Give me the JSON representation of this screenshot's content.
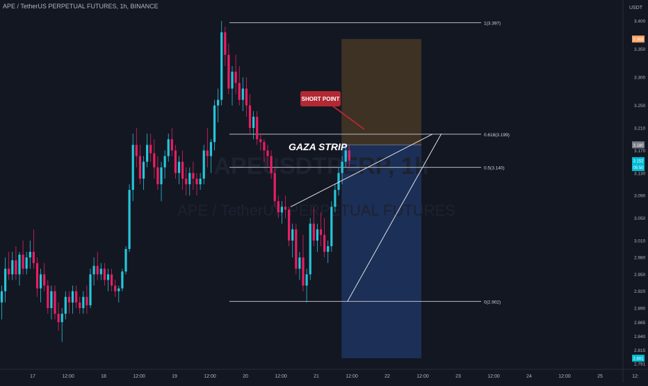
{
  "header": {
    "symbol_line": "APE / TetherUS PERPETUAL FUTURES, 1h, BINANCE",
    "currency": "USDT"
  },
  "watermark": {
    "ticker": "APEUSDTPERP, 1h",
    "name": "APE / TetherUS PERPETUAL FUTURES"
  },
  "annotations": {
    "gaza_strip": "GAZA STRIP",
    "short_point": "SHORT POINT"
  },
  "colors": {
    "background": "#131722",
    "up_candle": "#26c6da",
    "down_candle": "#e91e63",
    "target_zone": "#1c2f56",
    "stop_zone": "#3d3224",
    "short_point_bubble": "#b22833",
    "current_price_tag": "#00bcd4",
    "stop_price_tag": "#f7a363",
    "entry_price_tag": "#787b86"
  },
  "chart_data": {
    "type": "candlestick",
    "timeframe": "1h",
    "y_axis": {
      "ylim": [
        2.785,
        3.425
      ],
      "tick_labels": [
        "3.400",
        "3.350",
        "3.300",
        "3.250",
        "3.210",
        "3.170",
        "3.130",
        "3.090",
        "3.050",
        "3.010",
        "2.980",
        "2.950",
        "2.920",
        "2.890",
        "2.865",
        "2.840",
        "2.815",
        "2.791"
      ],
      "tick_values": [
        3.4,
        3.35,
        3.3,
        3.25,
        3.21,
        3.17,
        3.13,
        3.09,
        3.05,
        3.01,
        2.98,
        2.95,
        2.92,
        2.89,
        2.865,
        2.84,
        2.815,
        2.791
      ]
    },
    "x_axis": {
      "tick_labels": [
        "17",
        "12:00",
        "18",
        "12:00",
        "19",
        "12:00",
        "20",
        "12:00",
        "21",
        "12:00",
        "22",
        "12:00",
        "23",
        "12:00",
        "24",
        "12:00",
        "25",
        "12:"
      ],
      "tick_index": [
        0,
        12,
        24,
        36,
        48,
        60,
        72,
        84,
        96,
        108,
        120,
        132,
        144,
        156,
        168,
        180,
        192,
        204
      ]
    },
    "price_tags": [
      {
        "label": "3.368",
        "value": 3.368,
        "kind": "stop"
      },
      {
        "label": "3.180",
        "value": 3.18,
        "kind": "entry"
      },
      {
        "label": "3.152",
        "value": 3.152,
        "kind": "current",
        "sub": "05:50"
      },
      {
        "label": "2.801",
        "value": 2.801,
        "kind": "target"
      }
    ],
    "fib_levels": [
      {
        "label": "1(3.397)",
        "value": 3.397
      },
      {
        "label": "0.618(3.199)",
        "value": 3.199
      },
      {
        "label": "0.5(3.140)",
        "value": 3.14
      },
      {
        "label": "0(2.902)",
        "value": 2.902
      }
    ],
    "position": {
      "side": "short",
      "entry": 3.18,
      "stop": 3.368,
      "target": 2.801,
      "start_index": 115,
      "end_index": 142
    },
    "wedge": {
      "upper": [
        [
          82,
          3.07
        ],
        [
          118,
          3.199
        ]
      ],
      "lower": [
        [
          98,
          2.902
        ],
        [
          119,
          3.2
        ]
      ]
    },
    "candles": [
      [
        2.9,
        2.93,
        2.87,
        2.92
      ],
      [
        2.92,
        2.98,
        2.9,
        2.96
      ],
      [
        2.96,
        2.99,
        2.94,
        2.95
      ],
      [
        2.95,
        2.99,
        2.94,
        2.975
      ],
      [
        2.975,
        3.0,
        2.94,
        2.95
      ],
      [
        2.95,
        2.99,
        2.93,
        2.985
      ],
      [
        2.985,
        3.01,
        2.95,
        2.96
      ],
      [
        2.96,
        2.99,
        2.95,
        2.98
      ],
      [
        2.98,
        3.01,
        2.96,
        2.99
      ],
      [
        2.99,
        3.03,
        2.96,
        2.97
      ],
      [
        2.97,
        2.98,
        2.91,
        2.925
      ],
      [
        2.925,
        2.96,
        2.9,
        2.95
      ],
      [
        2.95,
        2.97,
        2.92,
        2.93
      ],
      [
        2.93,
        2.94,
        2.88,
        2.89
      ],
      [
        2.89,
        2.93,
        2.87,
        2.92
      ],
      [
        2.92,
        2.93,
        2.87,
        2.88
      ],
      [
        2.88,
        2.9,
        2.85,
        2.865
      ],
      [
        2.865,
        2.89,
        2.83,
        2.88
      ],
      [
        2.88,
        2.92,
        2.87,
        2.91
      ],
      [
        2.91,
        2.92,
        2.88,
        2.9
      ],
      [
        2.9,
        2.93,
        2.88,
        2.92
      ],
      [
        2.92,
        2.93,
        2.89,
        2.9
      ],
      [
        2.9,
        2.91,
        2.88,
        2.89
      ],
      [
        2.89,
        2.92,
        2.88,
        2.91
      ],
      [
        2.91,
        2.93,
        2.88,
        2.895
      ],
      [
        2.895,
        2.96,
        2.89,
        2.95
      ],
      [
        2.95,
        2.98,
        2.93,
        2.965
      ],
      [
        2.965,
        2.99,
        2.94,
        2.95
      ],
      [
        2.95,
        2.97,
        2.94,
        2.96
      ],
      [
        2.96,
        2.97,
        2.93,
        2.94
      ],
      [
        2.94,
        2.96,
        2.92,
        2.95
      ],
      [
        2.95,
        2.96,
        2.92,
        2.93
      ],
      [
        2.93,
        2.94,
        2.91,
        2.92
      ],
      [
        2.92,
        2.93,
        2.9,
        2.925
      ],
      [
        2.925,
        2.96,
        2.92,
        2.955
      ],
      [
        2.955,
        3.0,
        2.95,
        2.995
      ],
      [
        2.995,
        3.11,
        2.99,
        3.1
      ],
      [
        3.1,
        3.2,
        3.08,
        3.18
      ],
      [
        3.18,
        3.21,
        3.14,
        3.16
      ],
      [
        3.16,
        3.18,
        3.11,
        3.12
      ],
      [
        3.12,
        3.16,
        3.1,
        3.15
      ],
      [
        3.15,
        3.2,
        3.14,
        3.18
      ],
      [
        3.18,
        3.2,
        3.15,
        3.165
      ],
      [
        3.165,
        3.19,
        3.12,
        3.14
      ],
      [
        3.14,
        3.16,
        3.1,
        3.11
      ],
      [
        3.11,
        3.15,
        3.08,
        3.14
      ],
      [
        3.14,
        3.17,
        3.12,
        3.16
      ],
      [
        3.16,
        3.2,
        3.15,
        3.19
      ],
      [
        3.19,
        3.21,
        3.16,
        3.17
      ],
      [
        3.17,
        3.18,
        3.12,
        3.13
      ],
      [
        3.13,
        3.16,
        3.11,
        3.15
      ],
      [
        3.15,
        3.17,
        3.1,
        3.12
      ],
      [
        3.12,
        3.14,
        3.09,
        3.11
      ],
      [
        3.11,
        3.14,
        3.09,
        3.13
      ],
      [
        3.13,
        3.15,
        3.1,
        3.12
      ],
      [
        3.12,
        3.13,
        3.09,
        3.11
      ],
      [
        3.11,
        3.13,
        3.1,
        3.12
      ],
      [
        3.12,
        3.18,
        3.11,
        3.17
      ],
      [
        3.17,
        3.21,
        3.14,
        3.16
      ],
      [
        3.16,
        3.19,
        3.13,
        3.185
      ],
      [
        3.185,
        3.26,
        3.17,
        3.25
      ],
      [
        3.25,
        3.28,
        3.22,
        3.26
      ],
      [
        3.26,
        3.4,
        3.25,
        3.38
      ],
      [
        3.38,
        3.39,
        3.32,
        3.34
      ],
      [
        3.34,
        3.36,
        3.27,
        3.28
      ],
      [
        3.28,
        3.32,
        3.25,
        3.31
      ],
      [
        3.31,
        3.34,
        3.27,
        3.29
      ],
      [
        3.29,
        3.32,
        3.25,
        3.26
      ],
      [
        3.26,
        3.3,
        3.24,
        3.28
      ],
      [
        3.28,
        3.3,
        3.23,
        3.25
      ],
      [
        3.25,
        3.27,
        3.2,
        3.21
      ],
      [
        3.21,
        3.24,
        3.19,
        3.23
      ],
      [
        3.23,
        3.24,
        3.18,
        3.19
      ],
      [
        3.19,
        3.2,
        3.17,
        3.185
      ],
      [
        3.185,
        3.19,
        3.15,
        3.17
      ],
      [
        3.17,
        3.18,
        3.14,
        3.16
      ],
      [
        3.16,
        3.17,
        3.12,
        3.13
      ],
      [
        3.13,
        3.14,
        3.07,
        3.08
      ],
      [
        3.08,
        3.09,
        3.05,
        3.06
      ],
      [
        3.06,
        3.08,
        3.04,
        3.07
      ],
      [
        3.07,
        3.09,
        3.05,
        3.065
      ],
      [
        3.065,
        3.07,
        3.0,
        3.01
      ],
      [
        3.01,
        3.04,
        2.98,
        3.03
      ],
      [
        3.03,
        3.04,
        2.95,
        2.96
      ],
      [
        2.96,
        2.99,
        2.94,
        2.98
      ],
      [
        2.98,
        3.02,
        2.92,
        2.93
      ],
      [
        2.93,
        2.96,
        2.9,
        2.95
      ],
      [
        2.95,
        3.05,
        2.94,
        3.04
      ],
      [
        3.04,
        3.07,
        3.0,
        3.01
      ],
      [
        3.01,
        3.04,
        2.99,
        3.03
      ],
      [
        3.03,
        3.06,
        3.0,
        3.02
      ],
      [
        3.02,
        3.05,
        2.98,
        2.99
      ],
      [
        2.99,
        3.01,
        2.97,
        3.0
      ],
      [
        3.0,
        3.08,
        2.99,
        3.07
      ],
      [
        3.07,
        3.11,
        3.06,
        3.1
      ],
      [
        3.1,
        3.14,
        3.09,
        3.13
      ],
      [
        3.13,
        3.16,
        3.11,
        3.15
      ],
      [
        3.15,
        3.18,
        3.14,
        3.17
      ],
      [
        3.17,
        3.18,
        3.14,
        3.152
      ]
    ],
    "candle_start_index": 0,
    "candle_step": 1.2
  }
}
